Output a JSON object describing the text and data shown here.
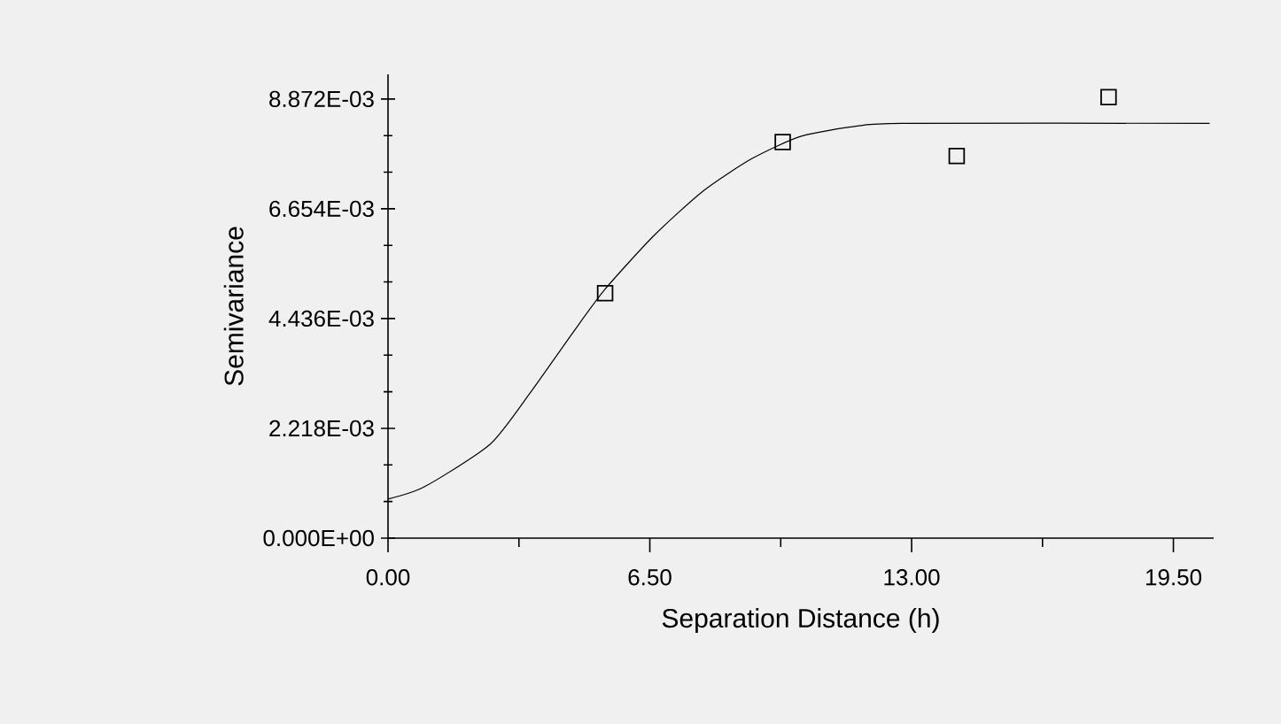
{
  "chart_data": {
    "type": "scatter",
    "xlabel": "Separation Distance (h)",
    "ylabel": "Semivariance",
    "xlim": [
      0,
      20.5
    ],
    "ylim": [
      0,
      0.00937
    ],
    "xticks": [
      {
        "value": 0,
        "label": "0.00"
      },
      {
        "value": 6.5,
        "label": "6.50"
      },
      {
        "value": 13,
        "label": "13.00"
      },
      {
        "value": 19.5,
        "label": "19.50"
      }
    ],
    "yticks": [
      {
        "value": 0,
        "label": "0.000E+00"
      },
      {
        "value": 0.002218,
        "label": "2.218E-03"
      },
      {
        "value": 0.004436,
        "label": "4.436E-03"
      },
      {
        "value": 0.006654,
        "label": "6.654E-03"
      },
      {
        "value": 0.008872,
        "label": "8.872E-03"
      }
    ],
    "grid": false,
    "series": [
      {
        "marker": "square",
        "color": "#000000",
        "x": [
          5.39,
          9.8,
          14.12,
          17.89
        ],
        "values": [
          0.00495,
          0.008,
          0.00772,
          0.00891
        ]
      },
      {
        "type": "line",
        "line_style": "solid",
        "color": "#000000",
        "x": [
          0,
          0.91,
          2.54,
          3.56,
          4.57,
          5.39,
          6.6,
          7.82,
          9.04,
          10.26,
          11.69,
          12.9,
          20.4
        ],
        "values": [
          0.00079,
          0.00104,
          0.0019,
          0.00297,
          0.00413,
          0.00503,
          0.00611,
          0.00701,
          0.00767,
          0.00812,
          0.00833,
          0.00838,
          0.00838
        ]
      }
    ]
  }
}
